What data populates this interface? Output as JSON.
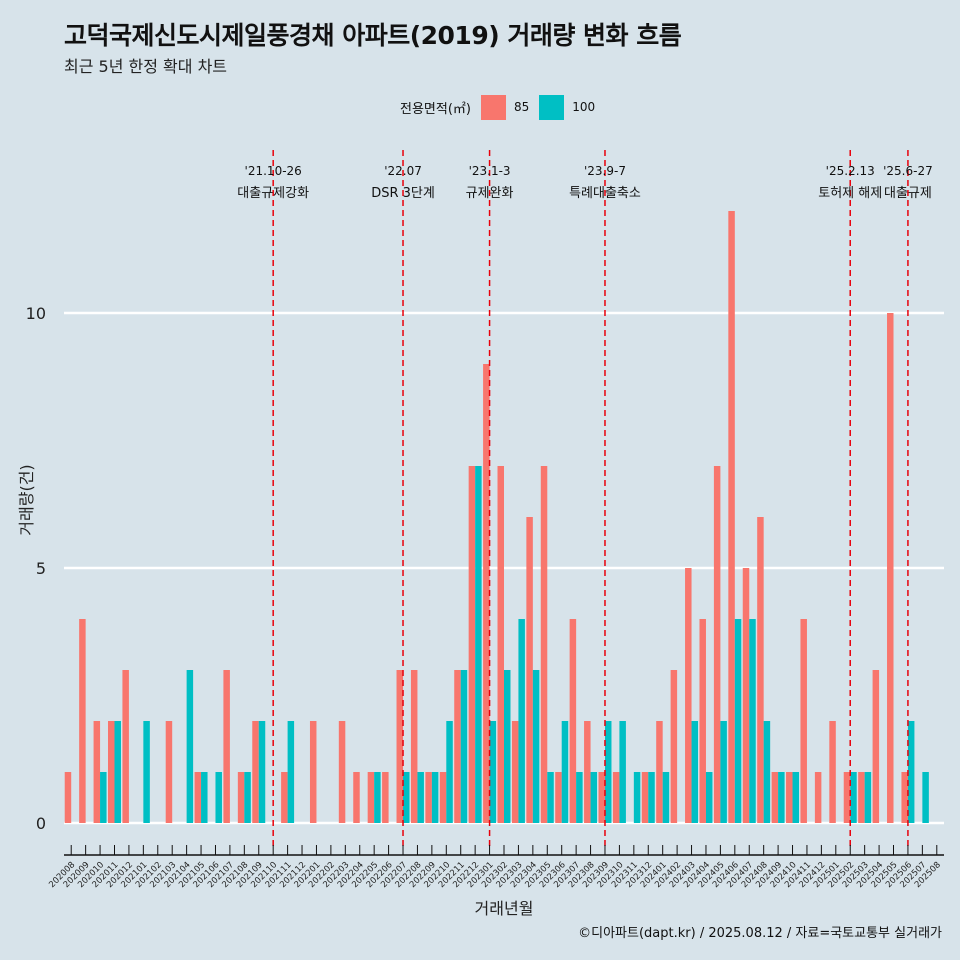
{
  "title": "고덕국제신도시제일풍경채 아파트(2019) 거래량 변화 흐름",
  "subtitle": "최근 5년 한정 확대 차트",
  "legend": {
    "title": "전용면적(㎡)",
    "items": [
      {
        "label": "85",
        "color": "#f8766d"
      },
      {
        "label": "100",
        "color": "#00bfc4"
      }
    ]
  },
  "caption": "©디아파트(dapt.kr) / 2025.08.12 / 자료=국토교통부 실거래가",
  "chart_data": {
    "type": "bar",
    "xlabel": "거래년월",
    "ylabel": "거래량(건)",
    "ylim": [
      -0.5,
      12.5
    ],
    "yticks": [
      0,
      5,
      10
    ],
    "grid": true,
    "categories": [
      "202008",
      "202009",
      "202010",
      "202011",
      "202012",
      "202101",
      "202102",
      "202103",
      "202104",
      "202105",
      "202106",
      "202107",
      "202108",
      "202109",
      "202110",
      "202111",
      "202112",
      "202201",
      "202202",
      "202203",
      "202204",
      "202205",
      "202206",
      "202207",
      "202208",
      "202209",
      "202210",
      "202211",
      "202212",
      "202301",
      "202302",
      "202303",
      "202304",
      "202305",
      "202306",
      "202307",
      "202308",
      "202309",
      "202310",
      "202311",
      "202312",
      "202401",
      "202402",
      "202403",
      "202404",
      "202405",
      "202406",
      "202407",
      "202408",
      "202409",
      "202410",
      "202411",
      "202412",
      "202501",
      "202502",
      "202503",
      "202504",
      "202505",
      "202506",
      "202507",
      "202508"
    ],
    "series": [
      {
        "name": "85",
        "color": "#f8766d",
        "values": [
          1,
          4,
          2,
          2,
          3,
          0,
          0,
          2,
          0,
          1,
          0,
          3,
          1,
          2,
          0,
          1,
          0,
          2,
          0,
          2,
          1,
          1,
          1,
          3,
          3,
          1,
          1,
          3,
          7,
          9,
          7,
          2,
          6,
          7,
          1,
          4,
          2,
          1,
          1,
          0,
          1,
          2,
          3,
          5,
          4,
          7,
          12,
          5,
          6,
          1,
          1,
          4,
          1,
          2,
          1,
          1,
          3,
          10,
          1,
          0,
          0
        ]
      },
      {
        "name": "100",
        "color": "#00bfc4",
        "values": [
          0,
          0,
          1,
          2,
          0,
          2,
          0,
          0,
          3,
          1,
          1,
          0,
          1,
          2,
          0,
          2,
          0,
          0,
          0,
          0,
          0,
          1,
          0,
          1,
          1,
          1,
          2,
          3,
          7,
          2,
          3,
          4,
          3,
          1,
          2,
          1,
          1,
          2,
          2,
          1,
          1,
          1,
          0,
          2,
          1,
          2,
          4,
          4,
          2,
          1,
          1,
          0,
          0,
          0,
          1,
          1,
          0,
          0,
          2,
          1,
          0
        ]
      }
    ],
    "events": [
      {
        "date": "'21.10-26",
        "label": "대출규제강화",
        "after": "202110"
      },
      {
        "date": "'22.07",
        "label": "DSR 3단계",
        "after": "202207"
      },
      {
        "date": "'23.1-3",
        "label": "규제완화",
        "after": "202301"
      },
      {
        "date": "'23.9-7",
        "label": "특례대출축소",
        "after": "202309"
      },
      {
        "date": "'25.2.13",
        "label": "토허제 해제",
        "after": "202502"
      },
      {
        "date": "'25.6-27",
        "label": "대출규제",
        "after": "202506"
      }
    ]
  }
}
